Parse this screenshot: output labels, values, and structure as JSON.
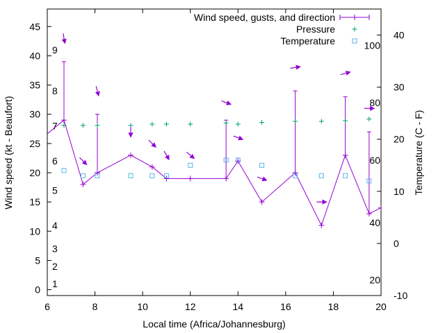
{
  "chart_data": {
    "type": "line",
    "xlabel": "Local time (Africa/Johannesburg)",
    "ylabel": "Wind speed (kt - Beaufort)",
    "y2label": "Temperature (C - F)",
    "xlim": [
      6,
      20
    ],
    "ylim": [
      -1,
      48
    ],
    "y2lim": [
      -10,
      45
    ],
    "x_ticks": [
      6,
      8,
      10,
      12,
      14,
      16,
      18,
      20
    ],
    "y_ticks": [
      0,
      5,
      10,
      15,
      20,
      25,
      30,
      35,
      40,
      45
    ],
    "y2_ticks": [
      -10,
      0,
      10,
      20,
      30,
      40
    ],
    "beaufort_labels": [
      {
        "label": "1",
        "y": 1
      },
      {
        "label": "2",
        "y": 4
      },
      {
        "label": "3",
        "y": 7
      },
      {
        "label": "4",
        "y": 11
      },
      {
        "label": "5",
        "y": 17
      },
      {
        "label": "6",
        "y": 22
      },
      {
        "label": "7",
        "y": 28
      },
      {
        "label": "8",
        "y": 34
      },
      {
        "label": "9",
        "y": 41
      }
    ],
    "fahrenheit_labels": [
      {
        "label": "20",
        "y2": -7
      },
      {
        "label": "40",
        "y2": 4
      },
      {
        "label": "60",
        "y2": 16
      },
      {
        "label": "80",
        "y2": 27
      },
      {
        "label": "100",
        "y2": 38
      }
    ],
    "legend": {
      "position": "top-right",
      "entries": [
        "Wind speed, gusts, and direction",
        "Pressure",
        "Temperature"
      ]
    },
    "series": [
      {
        "name": "Wind speed, gusts, and direction",
        "color": "#9400d3",
        "x": [
          5.5,
          6.7,
          7.5,
          8.1,
          9.5,
          10.4,
          11,
          12,
          13.5,
          14,
          15,
          16.4,
          17.5,
          18.5,
          19.5,
          20
        ],
        "y": [
          25,
          29,
          18,
          20,
          23,
          21,
          19,
          19,
          19,
          22,
          15,
          20,
          11,
          23,
          13,
          14
        ],
        "gusts": [
          null,
          39,
          null,
          30,
          null,
          null,
          null,
          null,
          29,
          null,
          null,
          34,
          null,
          33,
          27,
          null
        ]
      },
      {
        "name": "Pressure",
        "color": "#009e73",
        "marker": "+",
        "x": [
          6.7,
          7.5,
          8.1,
          9.5,
          10.4,
          11,
          12,
          13.5,
          14,
          15,
          16.4,
          17.5,
          18.5,
          19.5
        ],
        "y": [
          28.1,
          28.1,
          28.1,
          28.1,
          28.3,
          28.3,
          28.3,
          28.5,
          28.3,
          28.6,
          28.8,
          28.8,
          28.9,
          29.2
        ]
      },
      {
        "name": "Temperature",
        "color": "#56b4e9",
        "marker": "square",
        "axis": "y2",
        "x": [
          6.7,
          7.5,
          8.1,
          9.5,
          10.4,
          11,
          12,
          13.5,
          14,
          15,
          16.4,
          17.5,
          18.5,
          19.5
        ],
        "y2": [
          14,
          13,
          13,
          13,
          13,
          13,
          15,
          16,
          16,
          15,
          13,
          13,
          13,
          12
        ]
      }
    ],
    "wind_arrows": [
      {
        "x": 6.7,
        "y": 43,
        "dir": 80
      },
      {
        "x": 7.5,
        "y": 22,
        "dir": 45
      },
      {
        "x": 8.1,
        "y": 34,
        "dir": 75
      },
      {
        "x": 9.5,
        "y": 27,
        "dir": 90
      },
      {
        "x": 10.4,
        "y": 25,
        "dir": 45
      },
      {
        "x": 11,
        "y": 23,
        "dir": 60
      },
      {
        "x": 12,
        "y": 23,
        "dir": 40
      },
      {
        "x": 13.5,
        "y": 32,
        "dir": 20
      },
      {
        "x": 14,
        "y": 26,
        "dir": 20
      },
      {
        "x": 15,
        "y": 19,
        "dir": 20
      },
      {
        "x": 16.4,
        "y": 38,
        "dir": -10
      },
      {
        "x": 17.5,
        "y": 15,
        "dir": 0
      },
      {
        "x": 18.5,
        "y": 37,
        "dir": -15
      },
      {
        "x": 19.5,
        "y": 31,
        "dir": 0
      }
    ]
  }
}
